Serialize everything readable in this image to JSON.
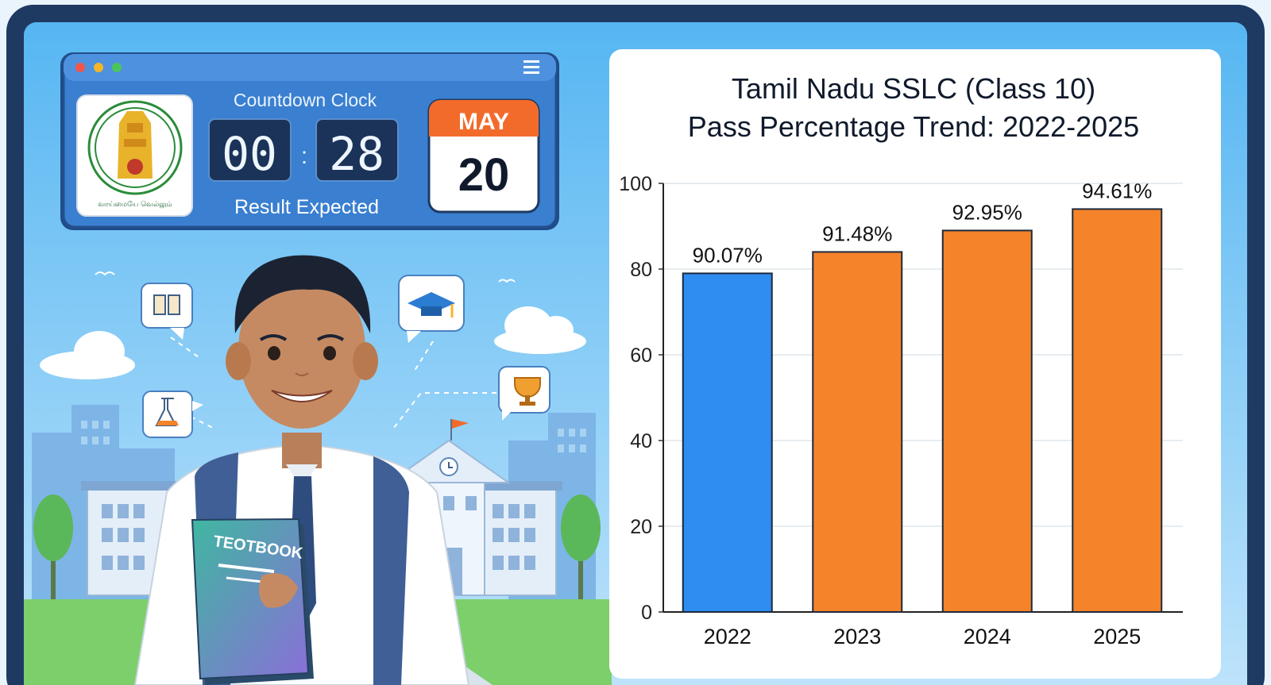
{
  "countdown": {
    "title": "Countdown Clock",
    "digit_a": "00",
    "separator": ":",
    "digit_b": "28",
    "subtitle": "Result Expected"
  },
  "calendar": {
    "month": "MAY",
    "day": "20"
  },
  "emblem": {
    "caption": "வாய்மையே வெல்லும்"
  },
  "textbook": {
    "label": "TEOTBOOK"
  },
  "colors": {
    "frame": "#1e3a63",
    "screen": "#5bbcf3",
    "window_blue": "#3a7fd0",
    "bar_2022": "#2f8cf0",
    "bar_other": "#f5832a",
    "calendar_header": "#f26b2a"
  },
  "icons": [
    "book-icon",
    "graduation-cap-icon",
    "flask-icon",
    "trophy-icon",
    "clock-icon",
    "flag-icon",
    "menu-icon",
    "emblem-icon"
  ],
  "chart_data": {
    "type": "bar",
    "title_line1": "Tamil Nadu SSLC (Class 10)",
    "title_line2": "Pass Percentage Trend: 2022-2025",
    "categories": [
      "2022",
      "2023",
      "2024",
      "2025"
    ],
    "values": [
      90.07,
      91.48,
      92.95,
      94.61
    ],
    "data_labels": [
      "90.07%",
      "91.48%",
      "92.95%",
      "94.61%"
    ],
    "drawn_heights": [
      79,
      84,
      89,
      94
    ],
    "yticks": [
      0,
      20,
      40,
      60,
      80,
      100
    ],
    "ylim": [
      0,
      100
    ],
    "grid": true,
    "legend": "none"
  }
}
